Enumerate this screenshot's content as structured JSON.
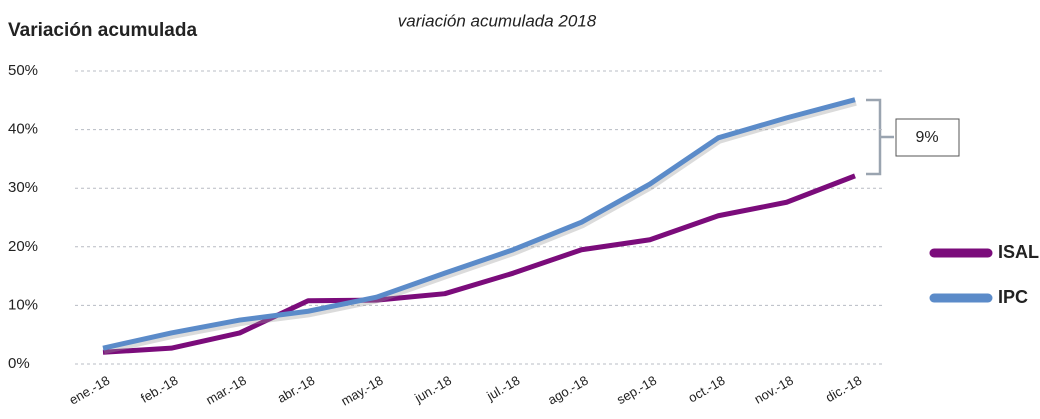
{
  "chart_data": {
    "type": "line",
    "title": "variación acumulada 2018",
    "y_label": "Variación acumulada",
    "categories": [
      "ene.-18",
      "feb.-18",
      "mar.-18",
      "abr.-18",
      "may.-18",
      "jun.-18",
      "jul.-18",
      "ago.-18",
      "sep.-18",
      "oct.-18",
      "nov.-18",
      "dic.-18"
    ],
    "series": [
      {
        "name": "ISAL",
        "color": "#7b0c7b",
        "values": [
          2.0,
          2.7,
          5.3,
          10.8,
          10.9,
          12.0,
          15.5,
          19.5,
          21.2,
          25.3,
          27.6,
          32.1
        ]
      },
      {
        "name": "IPC",
        "color": "#5b8bc9",
        "values": [
          2.7,
          5.3,
          7.5,
          9.0,
          11.4,
          15.5,
          19.5,
          24.2,
          30.7,
          38.6,
          42.0,
          45.1
        ]
      }
    ],
    "ylim": [
      0,
      50
    ],
    "yticks": [
      {
        "value": 0,
        "label": "0%"
      },
      {
        "value": 10,
        "label": "10%"
      },
      {
        "value": 20,
        "label": "20%"
      },
      {
        "value": 30,
        "label": "30%"
      },
      {
        "value": 40,
        "label": "40%"
      },
      {
        "value": 50,
        "label": "50%"
      }
    ],
    "grid": true,
    "legend": "right",
    "annotation": "9%"
  }
}
